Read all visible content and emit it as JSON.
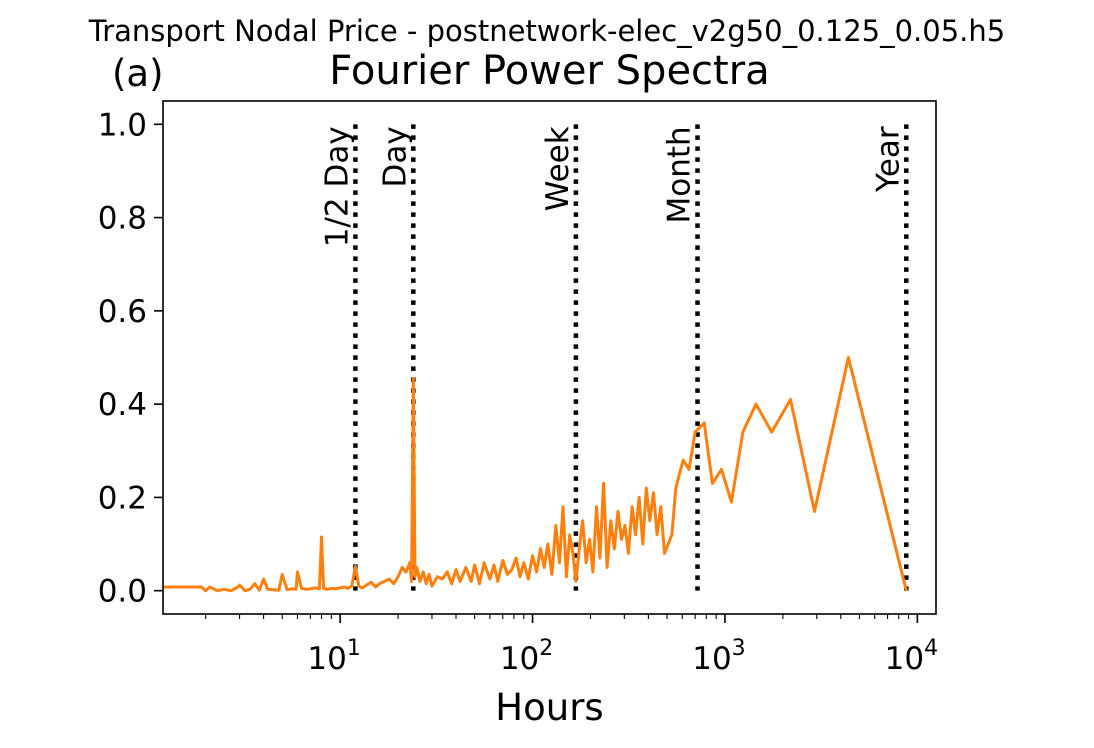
{
  "suptitle": "Transport Nodal Price - postnetwork-elec_v2g50_0.125_0.05.h5",
  "panel_label": "(a)",
  "chart_data": {
    "type": "line",
    "title": "Fourier Power Spectra",
    "xlabel": "Hours",
    "ylabel": "",
    "xscale": "log",
    "xlim": [
      1.2,
      12500
    ],
    "ylim": [
      -0.05,
      1.05
    ],
    "grid": false,
    "legend": "none",
    "x_ticks": [
      {
        "value": 10,
        "base": "10",
        "exp": "1"
      },
      {
        "value": 100,
        "base": "10",
        "exp": "2"
      },
      {
        "value": 1000,
        "base": "10",
        "exp": "3"
      },
      {
        "value": 10000,
        "base": "10",
        "exp": "4"
      }
    ],
    "y_ticks": [
      {
        "value": 0.0,
        "label": "0.0"
      },
      {
        "value": 0.2,
        "label": "0.2"
      },
      {
        "value": 0.4,
        "label": "0.4"
      },
      {
        "value": 0.6,
        "label": "0.6"
      },
      {
        "value": 0.8,
        "label": "0.8"
      },
      {
        "value": 1.0,
        "label": "1.0"
      }
    ],
    "reference_lines": [
      {
        "label": "1/2 Day",
        "x": 12
      },
      {
        "label": "Day",
        "x": 24
      },
      {
        "label": "Week",
        "x": 168
      },
      {
        "label": "Month",
        "x": 720
      },
      {
        "label": "Year",
        "x": 8760
      }
    ],
    "series": [
      {
        "color": "#ff7f0e",
        "x": [
          1.2,
          1.9,
          2.0,
          2.1,
          2.3,
          2.5,
          2.7,
          2.9,
          3.0,
          3.2,
          3.4,
          3.6,
          3.8,
          4.0,
          4.2,
          4.5,
          4.8,
          5.0,
          5.3,
          5.6,
          5.9,
          6.0,
          6.3,
          6.7,
          7.0,
          7.4,
          7.8,
          8.0,
          8.2,
          8.6,
          9.0,
          9.5,
          10.0,
          10.5,
          11.0,
          11.5,
          12.0,
          12.5,
          13.0,
          13.7,
          14.5,
          15.3,
          16.0,
          17.0,
          18.0,
          19.0,
          20.0,
          21.0,
          22.0,
          23.0,
          23.5,
          24.0,
          24.5,
          25.0,
          26.0,
          27.0,
          28.0,
          29.0,
          30.0,
          32.0,
          34.0,
          36.0,
          38.0,
          40.0,
          42.0,
          45.0,
          48.0,
          50.0,
          53.0,
          56.0,
          60.0,
          63.0,
          66.0,
          70.0,
          74.0,
          78.0,
          82.0,
          86.0,
          90.0,
          95.0,
          100.0,
          105.0,
          110.0,
          115.0,
          120.0,
          126.0,
          132.0,
          138.0,
          144.0,
          150.0,
          156.0,
          162.0,
          168.0,
          175.0,
          182.0,
          190.0,
          198.0,
          206.0,
          215.0,
          224.0,
          234.0,
          244.0,
          255.0,
          266.0,
          278.0,
          290.0,
          302.0,
          315.0,
          329.0,
          343.0,
          358.0,
          374.0,
          390.0,
          407.0,
          425.0,
          444.0,
          464.0,
          485.0,
          507.0,
          530.0,
          555.0,
          580.0,
          607.0,
          650.0,
          700.0,
          780.0,
          860.0,
          960.0,
          1080.0,
          1240.0,
          1450.0,
          1750.0,
          2190.0,
          2920.0,
          4380.0,
          8760.0
        ],
        "y": [
          0.008,
          0.008,
          0.0,
          0.008,
          0.0,
          0.003,
          0.0,
          0.006,
          0.012,
          0.0,
          0.003,
          0.015,
          0.001,
          0.025,
          0.003,
          0.002,
          0.001,
          0.035,
          0.002,
          0.004,
          0.003,
          0.04,
          0.005,
          0.003,
          0.004,
          0.006,
          0.004,
          0.115,
          0.005,
          0.003,
          0.005,
          0.004,
          0.006,
          0.008,
          0.005,
          0.01,
          0.052,
          0.01,
          0.006,
          0.012,
          0.018,
          0.008,
          0.015,
          0.02,
          0.025,
          0.015,
          0.03,
          0.05,
          0.04,
          0.06,
          0.02,
          0.455,
          0.03,
          0.05,
          0.02,
          0.04,
          0.015,
          0.035,
          0.01,
          0.03,
          0.025,
          0.04,
          0.015,
          0.045,
          0.02,
          0.05,
          0.02,
          0.055,
          0.015,
          0.06,
          0.025,
          0.055,
          0.02,
          0.065,
          0.035,
          0.045,
          0.07,
          0.03,
          0.06,
          0.025,
          0.075,
          0.04,
          0.09,
          0.05,
          0.1,
          0.035,
          0.14,
          0.06,
          0.18,
          0.03,
          0.12,
          0.08,
          0.02,
          0.09,
          0.15,
          0.06,
          0.11,
          0.04,
          0.18,
          0.07,
          0.23,
          0.05,
          0.15,
          0.09,
          0.17,
          0.11,
          0.14,
          0.08,
          0.18,
          0.12,
          0.2,
          0.1,
          0.22,
          0.15,
          0.21,
          0.12,
          0.18,
          0.08,
          0.1,
          0.12,
          0.22,
          0.25,
          0.28,
          0.26,
          0.34,
          0.36,
          0.23,
          0.26,
          0.19,
          0.34,
          0.4,
          0.34,
          0.41,
          0.17,
          0.5,
          0.0
        ]
      }
    ]
  }
}
